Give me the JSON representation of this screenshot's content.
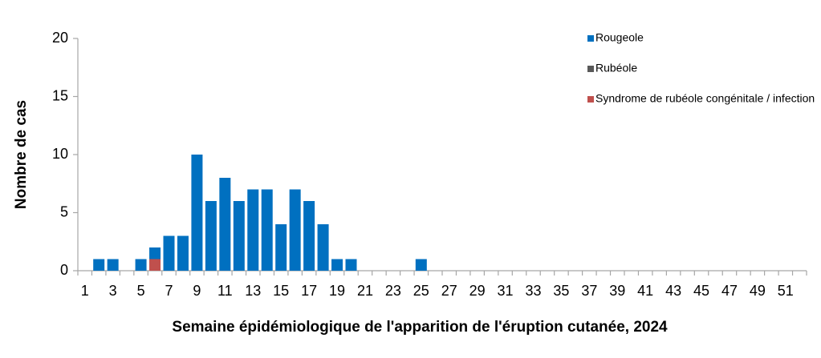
{
  "chart_data": {
    "type": "bar",
    "stacked": true,
    "x_label": "Semaine épidémiologique de l'apparition de l'éruption cutanée, 2024",
    "y_label": "Nombre de cas",
    "categories": [
      1,
      null,
      3,
      null,
      5,
      null,
      7,
      null,
      9,
      null,
      11,
      null,
      13,
      null,
      15,
      null,
      17,
      null,
      19,
      null,
      21,
      null,
      23,
      null,
      25,
      null,
      27,
      null,
      29,
      null,
      31,
      null,
      33,
      null,
      35,
      null,
      37,
      null,
      39,
      null,
      41,
      null,
      43,
      null,
      45,
      null,
      47,
      null,
      49,
      null,
      51,
      null
    ],
    "series": [
      {
        "name": "Rougeole",
        "color": "#0070c0",
        "values": [
          0,
          1,
          1,
          0,
          1,
          1,
          3,
          3,
          10,
          6,
          8,
          6,
          7,
          7,
          4,
          7,
          6,
          4,
          1,
          1,
          0,
          0,
          0,
          0,
          1,
          0,
          0,
          0,
          0,
          0,
          0,
          0,
          0,
          0,
          0,
          0,
          0,
          0,
          0,
          0,
          0,
          0,
          0,
          0,
          0,
          0,
          0,
          0,
          0,
          0,
          0,
          0
        ]
      },
      {
        "name": "Rubéole",
        "color": "#595959",
        "values": [
          0,
          0,
          0,
          0,
          0,
          0,
          0,
          0,
          0,
          0,
          0,
          0,
          0,
          0,
          0,
          0,
          0,
          0,
          0,
          0,
          0,
          0,
          0,
          0,
          0,
          0,
          0,
          0,
          0,
          0,
          0,
          0,
          0,
          0,
          0,
          0,
          0,
          0,
          0,
          0,
          0,
          0,
          0,
          0,
          0,
          0,
          0,
          0,
          0,
          0,
          0,
          0
        ]
      },
      {
        "name": "Syndrome de rubéole congénitale / infection",
        "color": "#c0504d",
        "values": [
          0,
          0,
          0,
          0,
          0,
          1,
          0,
          0,
          0,
          0,
          0,
          0,
          0,
          0,
          0,
          0,
          0,
          0,
          0,
          0,
          0,
          0,
          0,
          0,
          0,
          0,
          0,
          0,
          0,
          0,
          0,
          0,
          0,
          0,
          0,
          0,
          0,
          0,
          0,
          0,
          0,
          0,
          0,
          0,
          0,
          0,
          0,
          0,
          0,
          0,
          0,
          0
        ]
      }
    ],
    "ylim": [
      0,
      20
    ],
    "yticks": [
      0,
      5,
      10,
      15,
      20
    ],
    "grid": false,
    "legend": "top-right"
  }
}
